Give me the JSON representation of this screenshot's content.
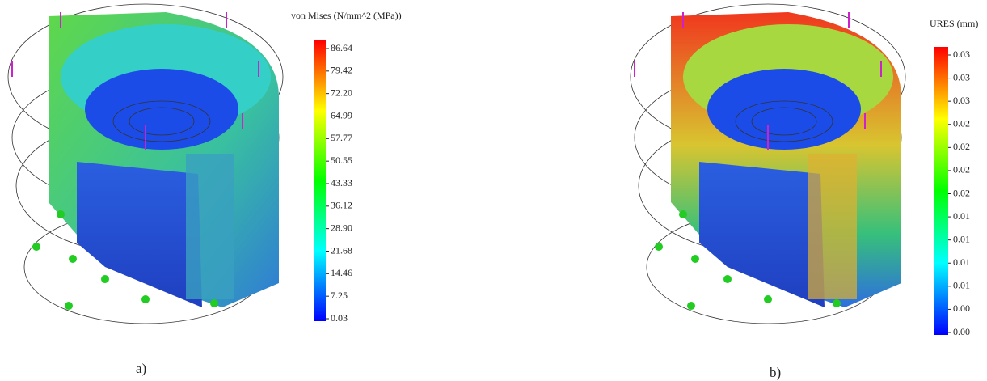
{
  "panels": [
    {
      "legend_title": "von Mises (N/mm^2 (MPa))",
      "legend_labels": [
        "86.64",
        "79.42",
        "72.20",
        "64.99",
        "57.77",
        "50.55",
        "43.33",
        "36.12",
        "28.90",
        "21.68",
        "14.46",
        "7.25",
        "0.03"
      ],
      "caption": "a)"
    },
    {
      "legend_title": "URES (mm)",
      "legend_labels": [
        "0.03",
        "0.03",
        "0.03",
        "0.02",
        "0.02",
        "0.02",
        "0.02",
        "0.01",
        "0.01",
        "0.01",
        "0.01",
        "0.00",
        "0.00"
      ],
      "caption": "b)"
    }
  ]
}
